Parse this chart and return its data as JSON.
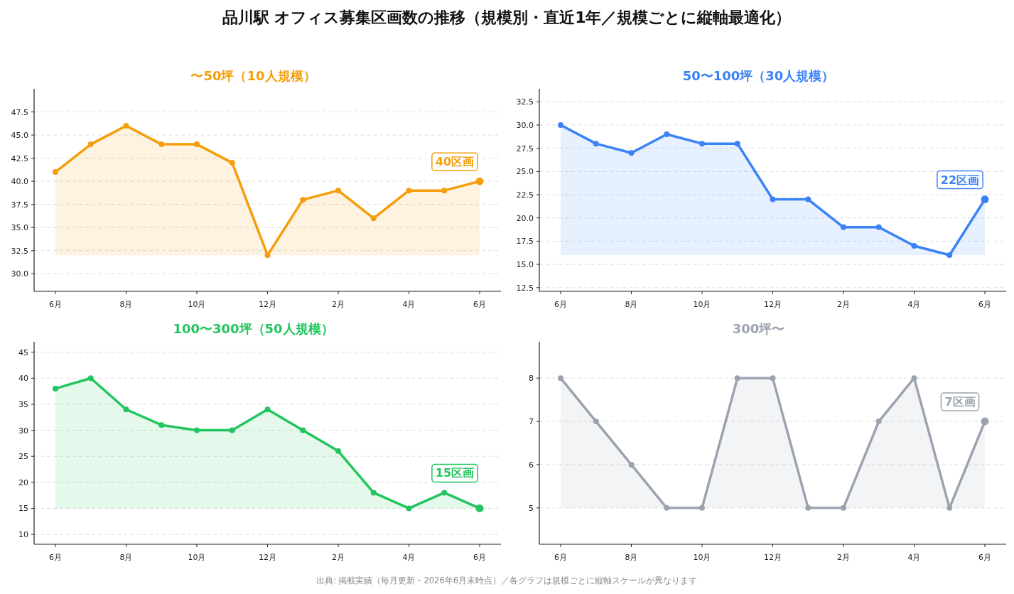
{
  "chart_data": [
    {
      "type": "other",
      "title": "品川駅 オフィス募集区画数の推移（規模別・直近1年／規模ごとに縦軸最適化）",
      "annotations": [
        "出典: 掲載実績（毎月更新・2026年6月末時点）／各グラフは規模ごとに縦軸スケールが異なります"
      ]
    },
    {
      "type": "area",
      "title": "〜50坪（10人規模）",
      "categories": [
        "6月",
        null,
        "8月",
        null,
        "10月",
        null,
        "12月",
        null,
        "2月",
        null,
        "4月",
        null,
        "6月"
      ],
      "series": [
        {
          "color": "#f59e0b",
          "values": [
            41,
            44,
            46,
            44,
            44,
            42,
            32,
            38,
            39,
            36,
            39,
            39,
            40
          ]
        }
      ],
      "ylim": [
        28.1,
        50
      ],
      "yticks": [
        {
          "value": 30,
          "label": "30.0"
        },
        {
          "value": 32.5,
          "label": "32.5"
        },
        {
          "value": 35,
          "label": "35.0"
        },
        {
          "value": 37.5,
          "label": "37.5"
        },
        {
          "value": 40,
          "label": "40.0"
        },
        {
          "value": 42.5,
          "label": "42.5"
        },
        {
          "value": 45,
          "label": "45.0"
        },
        {
          "value": 47.5,
          "label": "47.5"
        }
      ],
      "grid": "y",
      "marker": "circle",
      "line_style": "solid",
      "annotations": [
        "40区画"
      ]
    },
    {
      "type": "area",
      "title": "50〜100坪（30人規模）",
      "categories": [
        "6月",
        null,
        "8月",
        null,
        "10月",
        null,
        "12月",
        null,
        "2月",
        null,
        "4月",
        null,
        "6月"
      ],
      "series": [
        {
          "color": "#3b82f6",
          "values": [
            30,
            28,
            27,
            29,
            28,
            28,
            22,
            22,
            19,
            19,
            17,
            16,
            22
          ]
        }
      ],
      "ylim": [
        12.1,
        33.9
      ],
      "yticks": [
        {
          "value": 12.5,
          "label": "12.5"
        },
        {
          "value": 15,
          "label": "15.0"
        },
        {
          "value": 17.5,
          "label": "17.5"
        },
        {
          "value": 20,
          "label": "20.0"
        },
        {
          "value": 22.5,
          "label": "22.5"
        },
        {
          "value": 25,
          "label": "25.0"
        },
        {
          "value": 27.5,
          "label": "27.5"
        },
        {
          "value": 30,
          "label": "30.0"
        },
        {
          "value": 32.5,
          "label": "32.5"
        }
      ],
      "grid": "y",
      "marker": "circle",
      "line_style": "solid",
      "annotations": [
        "22区画"
      ]
    },
    {
      "type": "area",
      "title": "100〜300坪（50人規模）",
      "categories": [
        "6月",
        null,
        "8月",
        null,
        "10月",
        null,
        "12月",
        null,
        "2月",
        null,
        "4月",
        null,
        "6月"
      ],
      "series": [
        {
          "color": "#22c55e",
          "values": [
            38,
            40,
            34,
            31,
            30,
            30,
            34,
            30,
            26,
            18,
            15,
            18,
            15
          ]
        }
      ],
      "ylim": [
        8.1,
        47
      ],
      "yticks": [
        10,
        15,
        20,
        25,
        30,
        35,
        40,
        45
      ],
      "grid": "y",
      "marker": "circle",
      "line_style": "solid",
      "annotations": [
        "15区画"
      ]
    },
    {
      "type": "area",
      "title": "300坪〜",
      "categories": [
        "6月",
        null,
        "8月",
        null,
        "10月",
        null,
        "12月",
        null,
        "2月",
        null,
        "4月",
        null,
        "6月"
      ],
      "series": [
        {
          "color": "#9ca3af",
          "values": [
            8,
            7,
            6,
            5,
            5,
            8,
            8,
            5,
            5,
            7,
            8,
            5,
            7
          ]
        }
      ],
      "ylim": [
        4.16,
        8.84
      ],
      "yticks": [
        5,
        6,
        7,
        8
      ],
      "grid": "y",
      "marker": "circle",
      "line_style": "solid",
      "annotations": [
        "7区画"
      ]
    }
  ]
}
